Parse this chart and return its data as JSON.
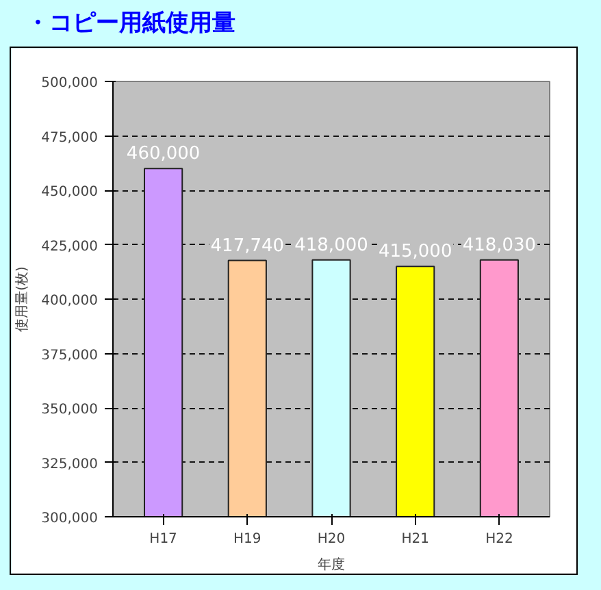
{
  "chart_data": {
    "type": "bar",
    "title": "・コピー用紙使用量",
    "xlabel": "年度",
    "ylabel": "使用量(枚)",
    "categories": [
      "H17",
      "H19",
      "H20",
      "H21",
      "H22"
    ],
    "values": [
      460000,
      417740,
      418000,
      415000,
      418030
    ],
    "colors": [
      "#cc99ff",
      "#ffcc99",
      "#ccffff",
      "#ffff00",
      "#ff99cc"
    ],
    "value_labels": [
      "460,000",
      "417,740",
      "418,000",
      "415,000",
      "418,030"
    ],
    "ylim": [
      300000,
      500000
    ],
    "yticks": [
      {
        "value": 300000,
        "label": "300,000"
      },
      {
        "value": 325000,
        "label": "325,000"
      },
      {
        "value": 350000,
        "label": "350,000"
      },
      {
        "value": 375000,
        "label": "375,000"
      },
      {
        "value": 400000,
        "label": "400,000"
      },
      {
        "value": 425000,
        "label": "425,000"
      },
      {
        "value": 450000,
        "label": "450,000"
      },
      {
        "value": 475000,
        "label": "475,000"
      },
      {
        "value": 500000,
        "label": "500,000"
      }
    ],
    "grid": "y"
  }
}
